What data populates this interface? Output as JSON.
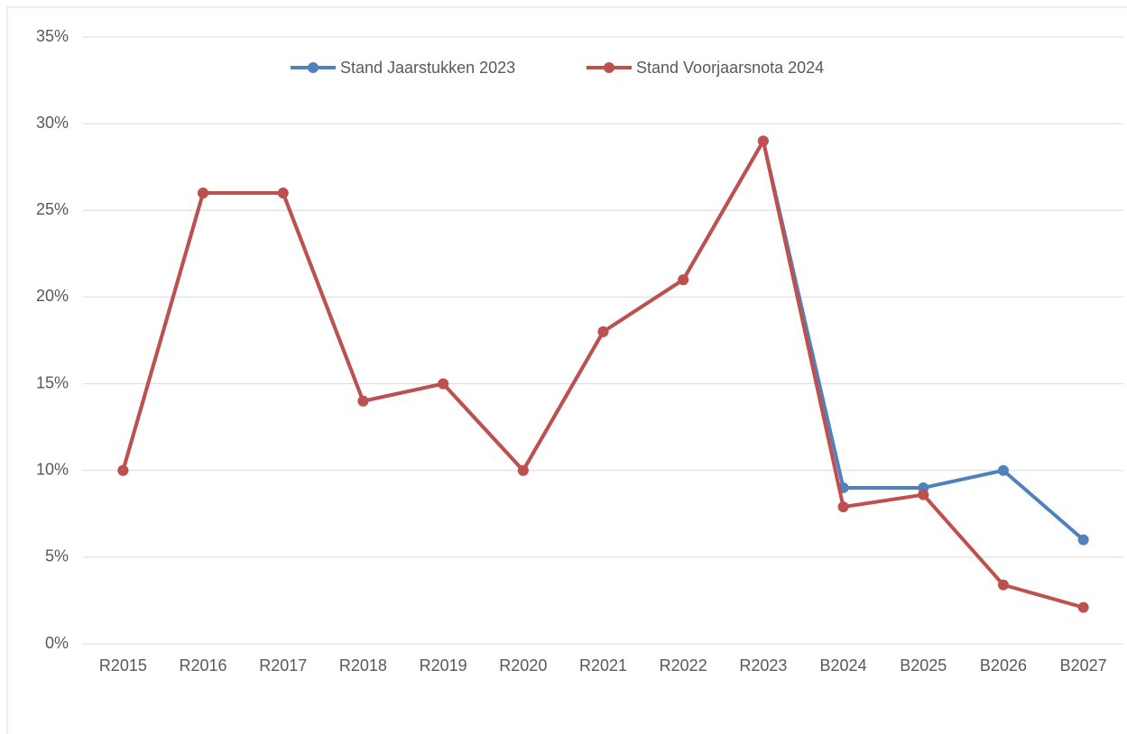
{
  "chart_data": {
    "type": "line",
    "categories": [
      "R2015",
      "R2016",
      "R2017",
      "R2018",
      "R2019",
      "R2020",
      "R2021",
      "R2022",
      "R2023",
      "B2024",
      "B2025",
      "B2026",
      "B2027"
    ],
    "series": [
      {
        "name": "Stand Jaarstukken 2023",
        "color": "#4f81bd",
        "values": [
          10,
          26,
          26,
          14,
          15,
          10,
          18,
          21,
          29,
          9,
          9,
          10,
          6
        ]
      },
      {
        "name": "Stand Voorjaarsnota 2024",
        "color": "#c0504d",
        "values": [
          10,
          26,
          26,
          14,
          15,
          10,
          18,
          21,
          29,
          7.9,
          8.6,
          3.4,
          2.1
        ]
      }
    ],
    "ylim": [
      0,
      35
    ],
    "yticks": [
      {
        "value": 0,
        "label": "0%"
      },
      {
        "value": 5,
        "label": "5%"
      },
      {
        "value": 10,
        "label": "10%"
      },
      {
        "value": 15,
        "label": "15%"
      },
      {
        "value": 20,
        "label": "20%"
      },
      {
        "value": 25,
        "label": "25%"
      },
      {
        "value": 30,
        "label": "30%"
      },
      {
        "value": 35,
        "label": "35%"
      }
    ],
    "grid": true,
    "legend": "top"
  }
}
